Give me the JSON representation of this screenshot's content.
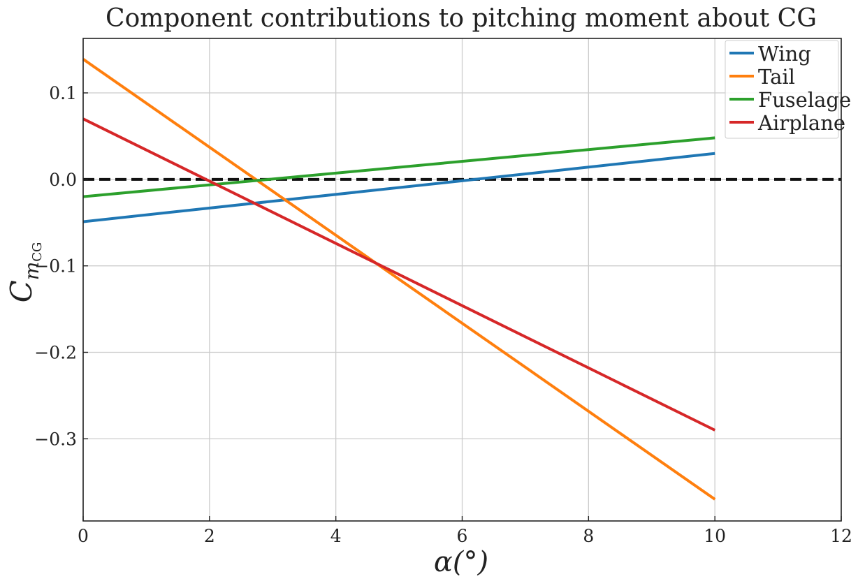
{
  "chart_data": {
    "type": "line",
    "title": "Component contributions to pitching moment about CG",
    "xlabel": "α(°)",
    "ylabel": "C_mCG",
    "ylabel_main": "C",
    "ylabel_sub": "m",
    "ylabel_subsub": "CG",
    "xlim": [
      0,
      12
    ],
    "ylim": [
      -0.395,
      0.163
    ],
    "x_ticks": [
      0,
      2,
      4,
      6,
      8,
      10,
      12
    ],
    "x_tick_labels": [
      "0",
      "2",
      "4",
      "6",
      "8",
      "10",
      "12"
    ],
    "y_ticks": [
      0.1,
      0.0,
      -0.1,
      -0.2,
      -0.3
    ],
    "y_tick_labels": [
      "0.1",
      "0.0",
      "−0.1",
      "−0.2",
      "−0.3"
    ],
    "grid": true,
    "legend_position": "top-right",
    "series": [
      {
        "name": "Wing",
        "color": "#1f77b4",
        "x": [
          0,
          10
        ],
        "y": [
          -0.049,
          0.03
        ]
      },
      {
        "name": "Tail",
        "color": "#ff7f0e",
        "x": [
          0,
          10
        ],
        "y": [
          0.139,
          -0.37
        ]
      },
      {
        "name": "Fuselage",
        "color": "#2ca02c",
        "x": [
          0,
          10
        ],
        "y": [
          -0.02,
          0.048
        ]
      },
      {
        "name": "Airplane",
        "color": "#d62728",
        "x": [
          0,
          10
        ],
        "y": [
          0.07,
          -0.29
        ]
      }
    ],
    "reference_line": {
      "y": 0.0,
      "style": "dashed",
      "color": "#111111"
    }
  }
}
